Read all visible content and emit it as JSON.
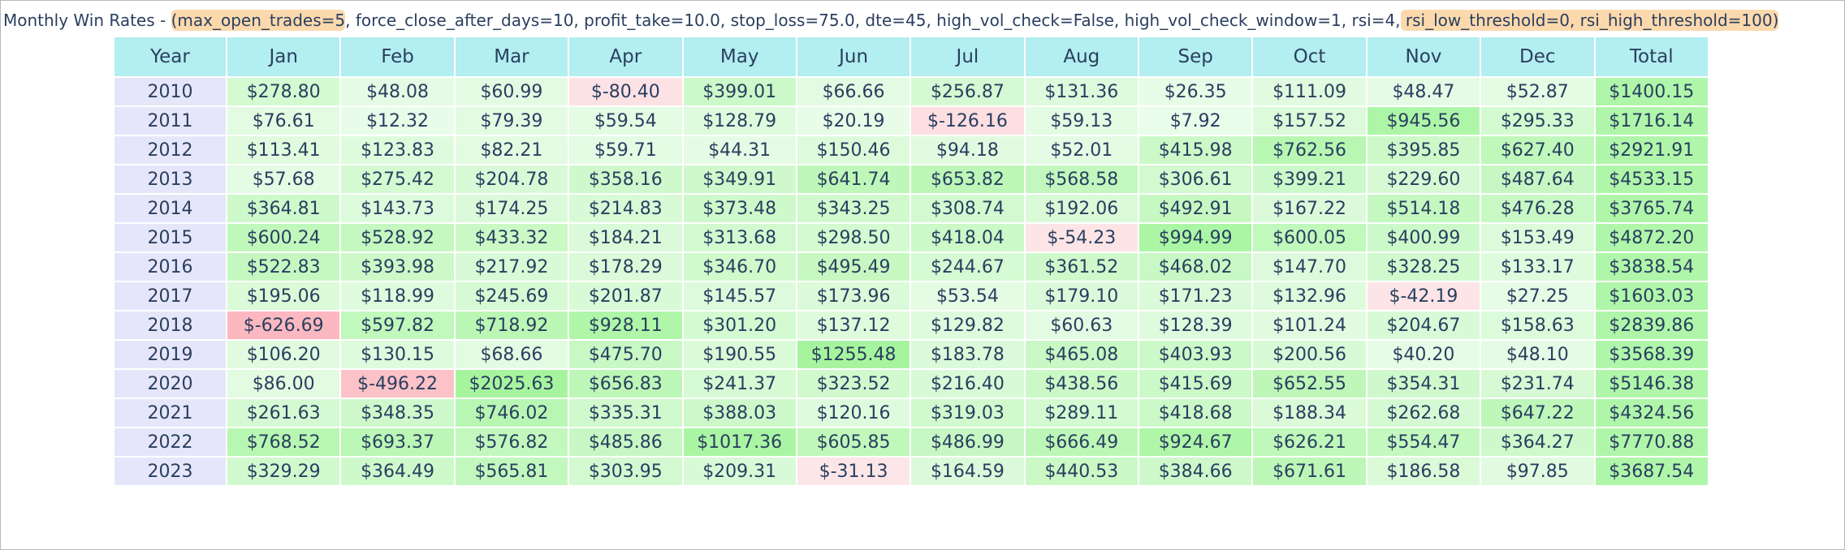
{
  "title": {
    "prefix": "Monthly Win Rates - ",
    "open_paren": "(",
    "hl_start": "max_open_trades=5",
    "middle": ", force_close_after_days=10, profit_take=10.0, stop_loss=75.0, dte=45, high_vol_check=False, high_vol_check_window=1, rsi=4,",
    "hl_end": " rsi_low_threshold=0, rsi_high_threshold=100)"
  },
  "colors": {
    "header_bg": "#b3eef0",
    "year_bg": "#e6e6fa",
    "negative_base": "#fde8ea",
    "negative_strong": "#fbb6be",
    "positive_light": "#ebfceb",
    "positive_strong": "#a6f59e",
    "text": "#2a3f5f",
    "title_highlight": "#fcd9ad"
  },
  "table": {
    "columns": [
      "Year",
      "Jan",
      "Feb",
      "Mar",
      "Apr",
      "May",
      "Jun",
      "Jul",
      "Aug",
      "Sep",
      "Oct",
      "Nov",
      "Dec",
      "Total"
    ],
    "rows": [
      {
        "year": "2010",
        "cells": [
          "$278.80",
          "$48.08",
          "$60.99",
          "$-80.40",
          "$399.01",
          "$66.66",
          "$256.87",
          "$131.36",
          "$26.35",
          "$111.09",
          "$48.47",
          "$52.87",
          "$1400.15"
        ]
      },
      {
        "year": "2011",
        "cells": [
          "$76.61",
          "$12.32",
          "$79.39",
          "$59.54",
          "$128.79",
          "$20.19",
          "$-126.16",
          "$59.13",
          "$7.92",
          "$157.52",
          "$945.56",
          "$295.33",
          "$1716.14"
        ]
      },
      {
        "year": "2012",
        "cells": [
          "$113.41",
          "$123.83",
          "$82.21",
          "$59.71",
          "$44.31",
          "$150.46",
          "$94.18",
          "$52.01",
          "$415.98",
          "$762.56",
          "$395.85",
          "$627.40",
          "$2921.91"
        ]
      },
      {
        "year": "2013",
        "cells": [
          "$57.68",
          "$275.42",
          "$204.78",
          "$358.16",
          "$349.91",
          "$641.74",
          "$653.82",
          "$568.58",
          "$306.61",
          "$399.21",
          "$229.60",
          "$487.64",
          "$4533.15"
        ]
      },
      {
        "year": "2014",
        "cells": [
          "$364.81",
          "$143.73",
          "$174.25",
          "$214.83",
          "$373.48",
          "$343.25",
          "$308.74",
          "$192.06",
          "$492.91",
          "$167.22",
          "$514.18",
          "$476.28",
          "$3765.74"
        ]
      },
      {
        "year": "2015",
        "cells": [
          "$600.24",
          "$528.92",
          "$433.32",
          "$184.21",
          "$313.68",
          "$298.50",
          "$418.04",
          "$-54.23",
          "$994.99",
          "$600.05",
          "$400.99",
          "$153.49",
          "$4872.20"
        ]
      },
      {
        "year": "2016",
        "cells": [
          "$522.83",
          "$393.98",
          "$217.92",
          "$178.29",
          "$346.70",
          "$495.49",
          "$244.67",
          "$361.52",
          "$468.02",
          "$147.70",
          "$328.25",
          "$133.17",
          "$3838.54"
        ]
      },
      {
        "year": "2017",
        "cells": [
          "$195.06",
          "$118.99",
          "$245.69",
          "$201.87",
          "$145.57",
          "$173.96",
          "$53.54",
          "$179.10",
          "$171.23",
          "$132.96",
          "$-42.19",
          "$27.25",
          "$1603.03"
        ]
      },
      {
        "year": "2018",
        "cells": [
          "$-626.69",
          "$597.82",
          "$718.92",
          "$928.11",
          "$301.20",
          "$137.12",
          "$129.82",
          "$60.63",
          "$128.39",
          "$101.24",
          "$204.67",
          "$158.63",
          "$2839.86"
        ]
      },
      {
        "year": "2019",
        "cells": [
          "$106.20",
          "$130.15",
          "$68.66",
          "$475.70",
          "$190.55",
          "$1255.48",
          "$183.78",
          "$465.08",
          "$403.93",
          "$200.56",
          "$40.20",
          "$48.10",
          "$3568.39"
        ]
      },
      {
        "year": "2020",
        "cells": [
          "$86.00",
          "$-496.22",
          "$2025.63",
          "$656.83",
          "$241.37",
          "$323.52",
          "$216.40",
          "$438.56",
          "$415.69",
          "$652.55",
          "$354.31",
          "$231.74",
          "$5146.38"
        ]
      },
      {
        "year": "2021",
        "cells": [
          "$261.63",
          "$348.35",
          "$746.02",
          "$335.31",
          "$388.03",
          "$120.16",
          "$319.03",
          "$289.11",
          "$418.68",
          "$188.34",
          "$262.68",
          "$647.22",
          "$4324.56"
        ]
      },
      {
        "year": "2022",
        "cells": [
          "$768.52",
          "$693.37",
          "$576.82",
          "$485.86",
          "$1017.36",
          "$605.85",
          "$486.99",
          "$666.49",
          "$924.67",
          "$626.21",
          "$554.47",
          "$364.27",
          "$7770.88"
        ]
      },
      {
        "year": "2023",
        "cells": [
          "$329.29",
          "$364.49",
          "$565.81",
          "$303.95",
          "$209.31",
          "$-31.13",
          "$164.59",
          "$440.53",
          "$384.66",
          "$671.61",
          "$186.58",
          "$97.85",
          "$3687.54"
        ]
      }
    ]
  }
}
